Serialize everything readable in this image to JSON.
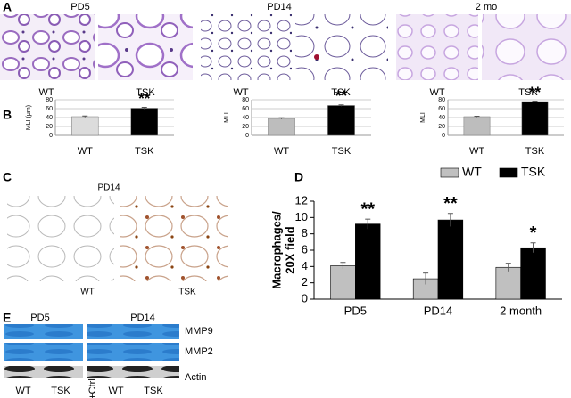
{
  "panel_labels": [
    "A",
    "B",
    "C",
    "D",
    "E"
  ],
  "panel_a": {
    "groups": [
      {
        "title": "PD5",
        "labels": [
          "WT",
          "TSK"
        ]
      },
      {
        "title": "PD14",
        "labels": [
          "WT",
          "TSK"
        ]
      },
      {
        "title": "2 mo",
        "labels": [
          "WT",
          "TSK"
        ]
      }
    ]
  },
  "panel_c": {
    "title": "PD14",
    "labels": [
      "WT",
      "TSK"
    ]
  },
  "panel_e": {
    "groups": [
      {
        "title": "PD5",
        "lanes": [
          "WT",
          "TSK"
        ]
      },
      {
        "title": "PD14",
        "lanes": [
          "+Ctrl",
          "WT",
          "TSK"
        ]
      }
    ],
    "bands": [
      "MMP9",
      "MMP2",
      "Actin"
    ]
  },
  "chart_data": [
    {
      "type": "bar",
      "ylabel": "MLI (μm)",
      "categories": [
        "WT",
        "TSK"
      ],
      "values": [
        42,
        61
      ],
      "errors": [
        1.5,
        2
      ],
      "colors": [
        "#dcdcdc",
        "#000000"
      ],
      "annotation": "**",
      "ylim": [
        0,
        80
      ],
      "yticks": [
        0,
        20,
        40,
        60,
        80
      ],
      "grid": true
    },
    {
      "type": "bar",
      "ylabel": "MLI",
      "categories": [
        "WT",
        "TSK"
      ],
      "values": [
        38,
        67
      ],
      "errors": [
        1.5,
        1.5
      ],
      "colors": [
        "#bdbdbd",
        "#000000"
      ],
      "annotation": "**",
      "ylim": [
        0,
        80
      ],
      "yticks": [
        0,
        20,
        40,
        60,
        80
      ],
      "grid": true
    },
    {
      "type": "bar",
      "ylabel": "MLI",
      "categories": [
        "WT",
        "TSK"
      ],
      "values": [
        42,
        76
      ],
      "errors": [
        1,
        1
      ],
      "colors": [
        "#bdbdbd",
        "#000000"
      ],
      "annotation": "**",
      "ylim": [
        0,
        80
      ],
      "yticks": [
        0,
        20,
        40,
        60,
        80
      ],
      "grid": true
    },
    {
      "type": "bar",
      "ylabel": [
        "Macrophages/",
        "20X field"
      ],
      "categories": [
        "PD5",
        "PD14",
        "2 month"
      ],
      "series": [
        {
          "name": "WT",
          "color": "#c0c0c0",
          "values": [
            4.1,
            2.5,
            3.9
          ],
          "errors": [
            0.4,
            0.7,
            0.5
          ]
        },
        {
          "name": "TSK",
          "color": "#000000",
          "values": [
            9.2,
            9.7,
            6.3
          ],
          "errors": [
            0.6,
            0.8,
            0.6
          ],
          "annotations": [
            "**",
            "**",
            "*"
          ]
        }
      ],
      "ylim": [
        0,
        12
      ],
      "yticks": [
        0,
        2,
        4,
        6,
        8,
        10,
        12
      ],
      "grid": false,
      "legend": "top-right"
    }
  ]
}
